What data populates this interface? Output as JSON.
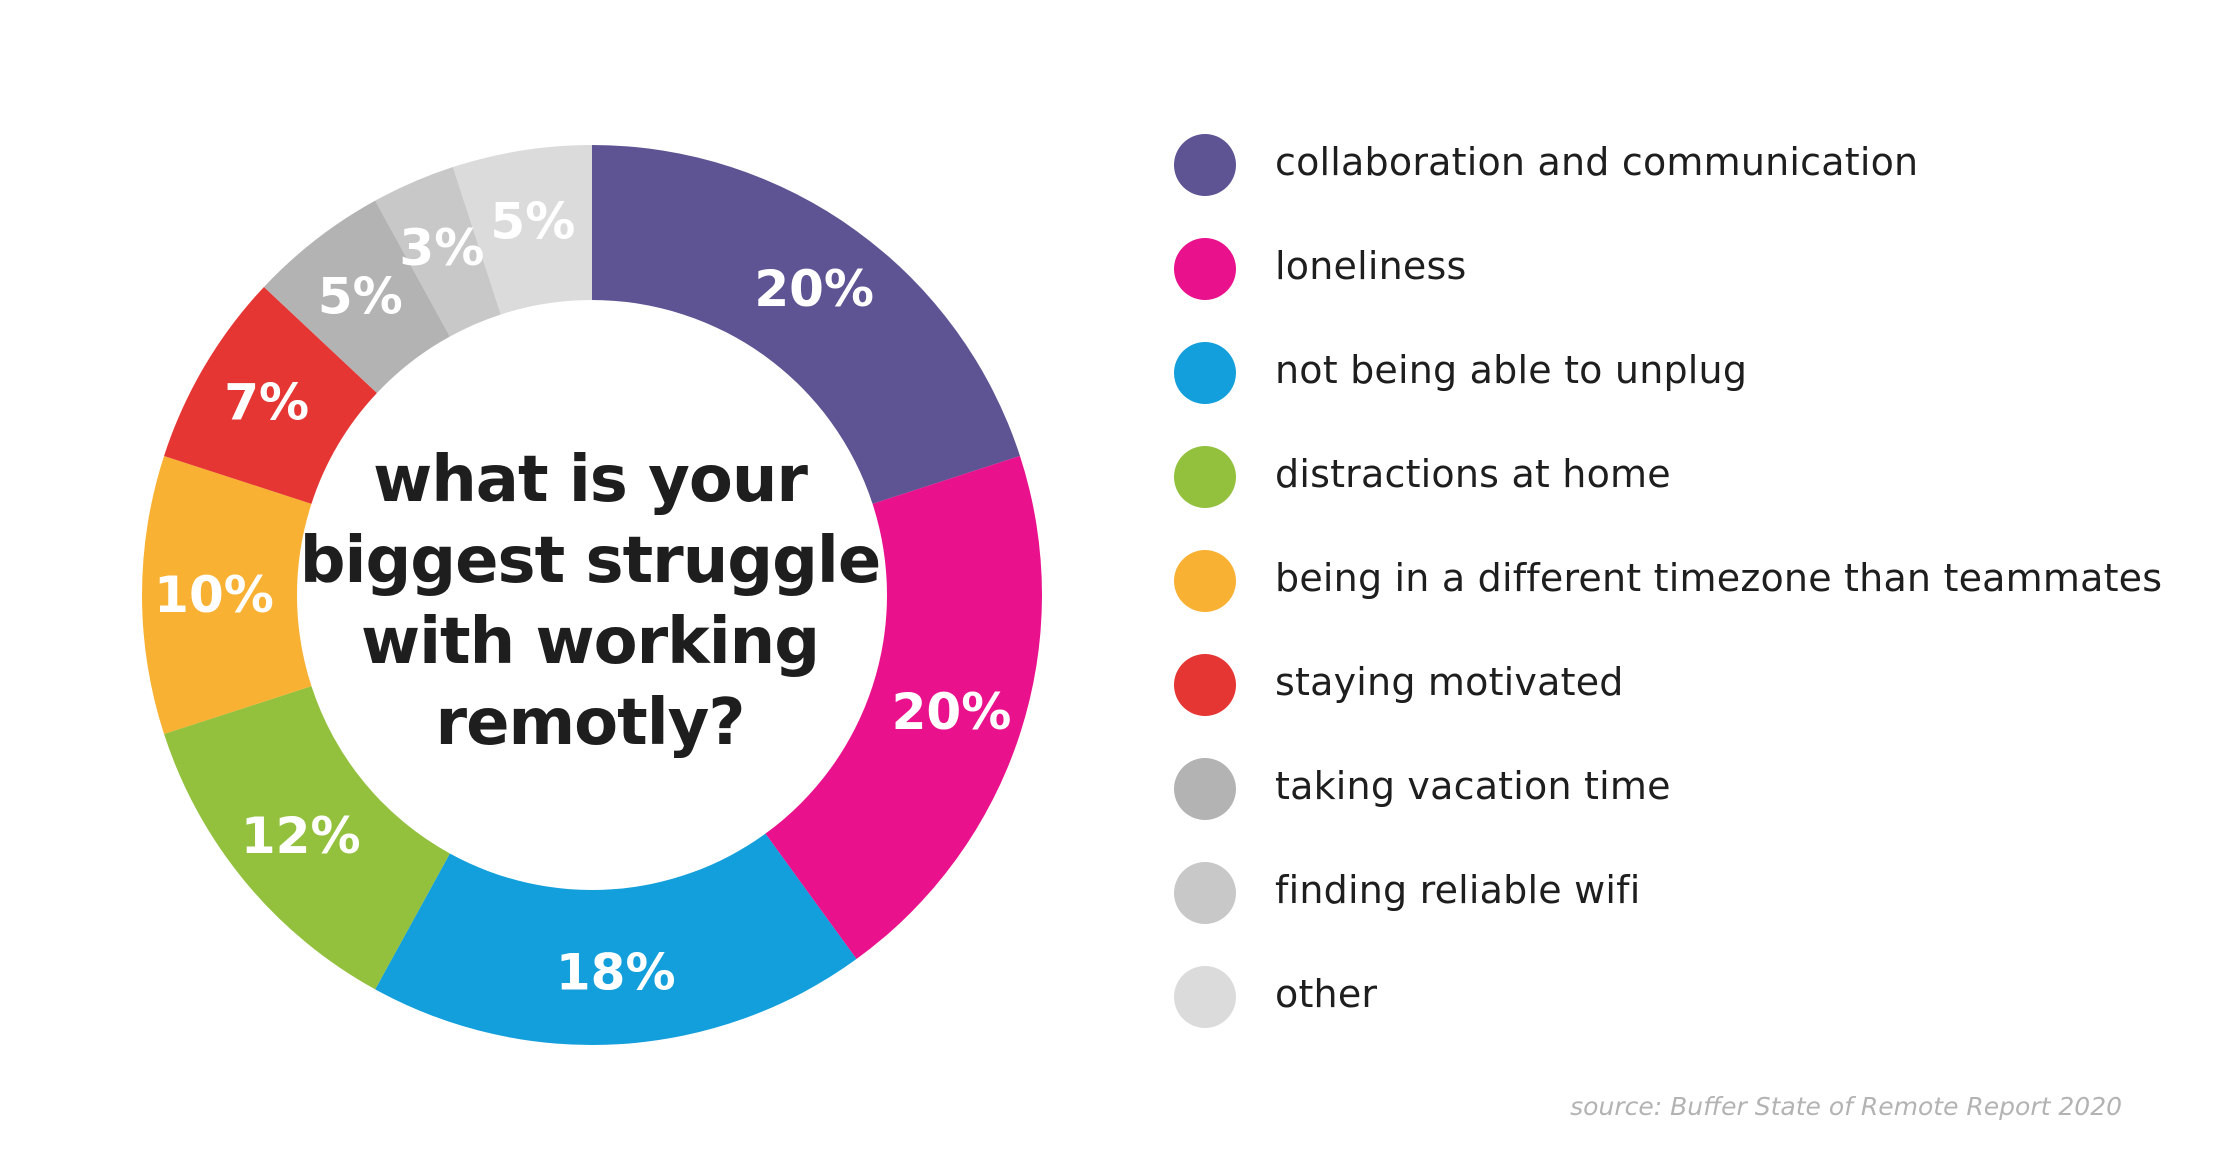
{
  "chart_data": {
    "type": "pie",
    "title": "what is your biggest struggle with working remotly?",
    "title_lines": [
      "what is your",
      "biggest struggle",
      "with working",
      "remotly?"
    ],
    "categories": [
      "collaboration and communication",
      "loneliness",
      "not being able to unplug",
      "distractions at home",
      "being in a different timezone than teammates",
      "staying motivated",
      "taking vacation time",
      "finding reliable wifi",
      "other"
    ],
    "values": [
      20,
      20,
      18,
      12,
      10,
      7,
      5,
      3,
      5
    ],
    "labels": [
      "20%",
      "20%",
      "18%",
      "12%",
      "10%",
      "7%",
      "5%",
      "3%",
      "5%"
    ],
    "colors": [
      "#5e5393",
      "#ea118d",
      "#129fdb",
      "#93c13e",
      "#f8b132",
      "#e63634",
      "#b3b3b3",
      "#c8c8c8",
      "#dbdbdb"
    ],
    "unit": "%",
    "legend_position": "right",
    "donut": true
  },
  "source": "source: Buffer State of Remote Report 2020"
}
